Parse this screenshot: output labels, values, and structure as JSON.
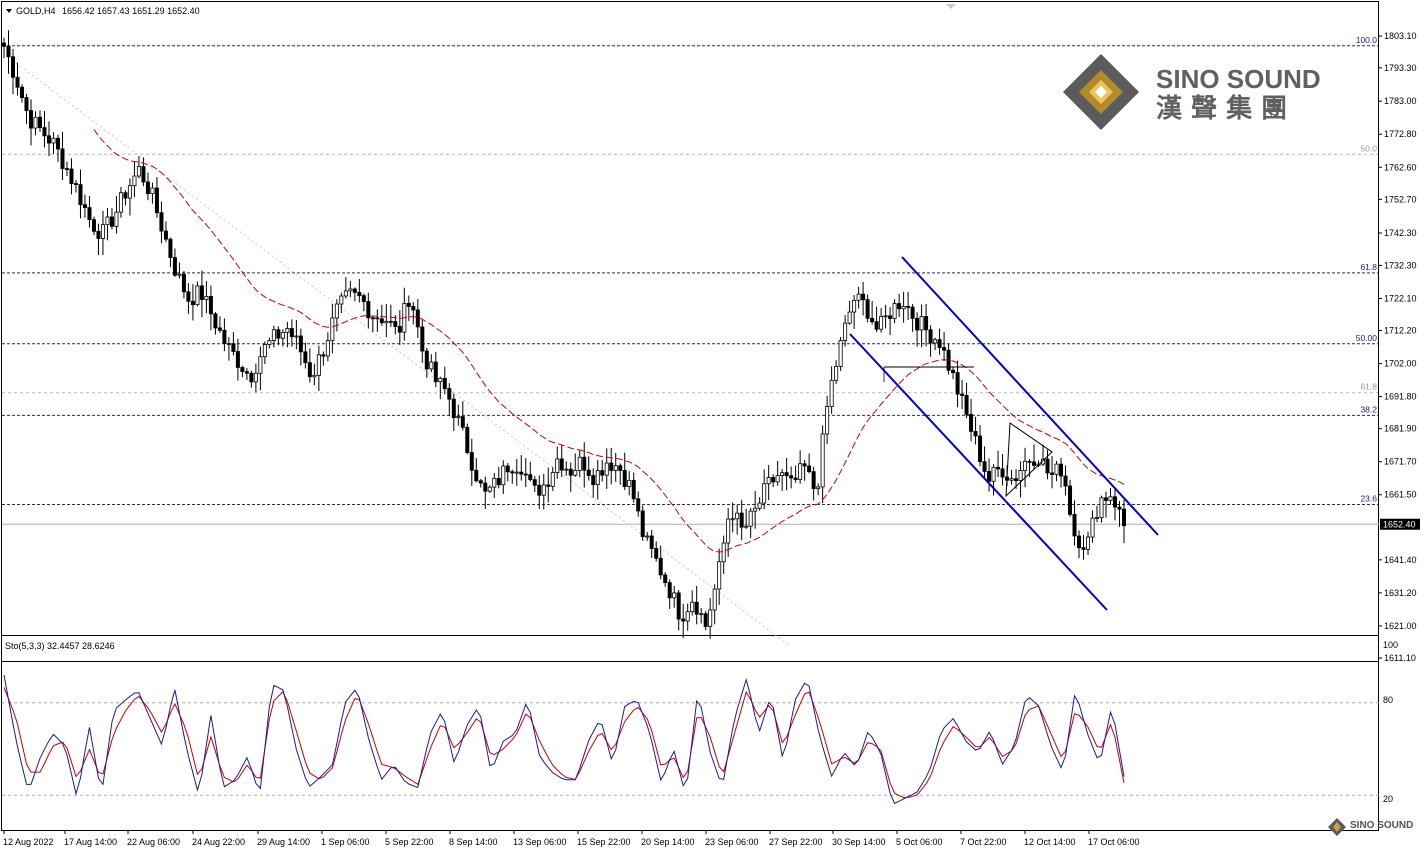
{
  "header": {
    "title": "GOLD,H4",
    "ohlc": "1656.42 1657.43 1651.29 1652.40"
  },
  "indicator": {
    "title": "Sto(5,3,3) 32.4457 28.6246",
    "level_high": "80",
    "level_low": "20",
    "top": "100"
  },
  "current_price": "1652.40",
  "logo": {
    "name": "SINO SOUND",
    "chinese": "漢 聲 集 團",
    "mini": "SINO SOUND"
  },
  "colors": {
    "candle": "#000000",
    "ma": "#cc0000",
    "channel": "#0000cc",
    "stoch_main": "#1a1aa0",
    "stoch_signal": "#cc0000"
  },
  "chart_data": {
    "type": "candlestick",
    "symbol": "GOLD",
    "timeframe": "H4",
    "ylim": [
      1611.1,
      1813.0
    ],
    "y_ticks": [
      "1803.10",
      "1793.30",
      "1783.00",
      "1772.80",
      "1762.60",
      "1752.70",
      "1742.30",
      "1732.30",
      "1722.10",
      "1712.20",
      "1702.00",
      "1691.80",
      "1681.90",
      "1671.70",
      "1661.50",
      "1641.40",
      "1631.20",
      "1621.00",
      "1611.10"
    ],
    "x_ticks": [
      "12 Aug 2022",
      "17 Aug 14:00",
      "22 Aug 06:00",
      "24 Aug 22:00",
      "29 Aug 14:00",
      "1 Sep 06:00",
      "5 Sep 22:00",
      "8 Sep 14:00",
      "13 Sep 06:00",
      "15 Sep 22:00",
      "20 Sep 14:00",
      "23 Sep 06:00",
      "27 Sep 22:00",
      "30 Sep 14:00",
      "5 Oct 06:00",
      "7 Oct 22:00",
      "12 Oct 14:00",
      "17 Oct 06:00"
    ],
    "price_path": [
      1800,
      1790,
      1778,
      1774,
      1770,
      1763,
      1755,
      1746,
      1742,
      1748,
      1756,
      1762,
      1754,
      1742,
      1730,
      1722,
      1724,
      1716,
      1708,
      1703,
      1698,
      1706,
      1710,
      1713,
      1707,
      1698,
      1707,
      1718,
      1723,
      1722,
      1717,
      1716,
      1711,
      1724,
      1706,
      1697,
      1693,
      1683,
      1672,
      1661,
      1665,
      1671,
      1671,
      1662,
      1665,
      1673,
      1669,
      1672,
      1667,
      1672,
      1670,
      1663,
      1648,
      1641,
      1633,
      1624,
      1630,
      1621,
      1636,
      1658,
      1650,
      1656,
      1664,
      1668,
      1664,
      1670,
      1662,
      1692,
      1708,
      1722,
      1720,
      1712,
      1718,
      1722,
      1716,
      1712,
      1709,
      1699,
      1688,
      1677,
      1666,
      1670,
      1666,
      1672,
      1674,
      1667,
      1670,
      1649,
      1646,
      1660,
      1662,
      1652
    ],
    "fib_levels": [
      {
        "label": "100.0",
        "price": 1800.1,
        "style": "dark"
      },
      {
        "label": "50.0",
        "price": 1766.6,
        "style": "light"
      },
      {
        "label": "61.8",
        "price": 1730.0,
        "style": "dark"
      },
      {
        "label": "50.00",
        "price": 1708.1,
        "style": "dark"
      },
      {
        "label": "61.8",
        "price": 1693.0,
        "style": "light"
      },
      {
        "label": "38.2",
        "price": 1686.0,
        "style": "dark"
      },
      {
        "label": "23.6",
        "price": 1658.5,
        "style": "dark"
      }
    ],
    "stochastic": {
      "k": 32.4457,
      "d": 28.6246,
      "levels": [
        20,
        80
      ],
      "k_series": [
        98,
        55,
        22,
        45,
        60,
        52,
        18,
        65,
        20,
        75,
        82,
        88,
        70,
        52,
        90,
        50,
        20,
        72,
        25,
        30,
        45,
        20,
        92,
        88,
        50,
        25,
        32,
        40,
        80,
        90,
        55,
        30,
        40,
        28,
        25,
        60,
        75,
        40,
        65,
        78,
        35,
        55,
        60,
        82,
        45,
        35,
        30,
        30,
        55,
        70,
        40,
        78,
        82,
        62,
        28,
        50,
        20,
        88,
        48,
        25,
        70,
        96,
        60,
        85,
        42,
        82,
        96,
        58,
        32,
        48,
        38,
        62,
        48,
        14,
        18,
        22,
        35,
        62,
        70,
        55,
        48,
        62,
        40,
        52,
        85,
        78,
        52,
        35,
        88,
        60,
        40,
        78,
        32
      ],
      "d_series": [
        90,
        70,
        35,
        35,
        52,
        55,
        30,
        50,
        30,
        60,
        75,
        85,
        75,
        60,
        80,
        62,
        30,
        58,
        32,
        28,
        40,
        28,
        80,
        88,
        62,
        35,
        30,
        38,
        68,
        86,
        65,
        40,
        38,
        32,
        27,
        50,
        68,
        50,
        60,
        72,
        45,
        50,
        58,
        75,
        55,
        40,
        32,
        30,
        48,
        62,
        48,
        68,
        78,
        68,
        38,
        45,
        28,
        75,
        58,
        32,
        60,
        88,
        70,
        80,
        52,
        72,
        90,
        68,
        40,
        45,
        40,
        55,
        50,
        22,
        18,
        20,
        30,
        52,
        65,
        58,
        50,
        58,
        45,
        50,
        75,
        78,
        60,
        42,
        75,
        65,
        48,
        68,
        28
      ]
    }
  }
}
